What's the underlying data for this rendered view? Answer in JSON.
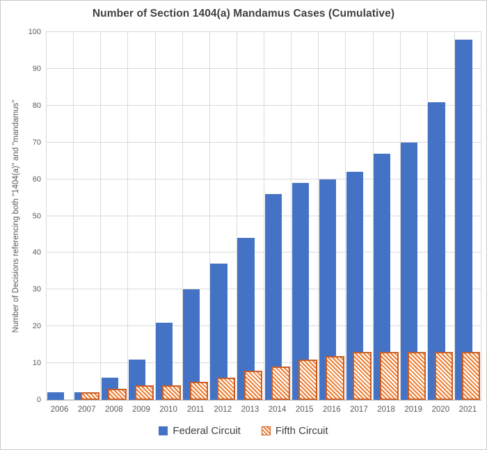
{
  "window": {
    "background": "#FFFFFF",
    "border_color": "#C9C9C9"
  },
  "chart_data": {
    "type": "bar",
    "title": "Number of Section 1404(a) Mandamus Cases (Cumulative)",
    "ylabel": "Number of Decisions referencing both \"1404(a)\" and \"mandamus\"",
    "xlabel": "",
    "categories": [
      "2006",
      "2007",
      "2008",
      "2009",
      "2010",
      "2011",
      "2012",
      "2013",
      "2014",
      "2015",
      "2016",
      "2017",
      "2018",
      "2019",
      "2020",
      "2021"
    ],
    "series": [
      {
        "name": "Federal Circuit",
        "values": [
          2,
          2,
          6,
          11,
          21,
          30,
          37,
          44,
          56,
          59,
          60,
          62,
          67,
          70,
          81,
          98
        ],
        "color": "#4472C4",
        "pattern": "solid"
      },
      {
        "name": "Fifth Circuit",
        "values": [
          0,
          2,
          3,
          4,
          4,
          5,
          6,
          8,
          9,
          11,
          12,
          13,
          13,
          13,
          13,
          13
        ],
        "color": "#ED7D31",
        "border_color": "#C95E25",
        "pattern": "diagonal-hatch-down"
      }
    ],
    "ylim": [
      0,
      100
    ],
    "yticks": [
      0,
      10,
      20,
      30,
      40,
      50,
      60,
      70,
      80,
      90,
      100
    ],
    "grid": "horizontal-and-vertical",
    "gridline_color": "#D9D9D9",
    "axis_text_color": "#595959",
    "title_color": "#404040",
    "legend_position": "bottom"
  }
}
